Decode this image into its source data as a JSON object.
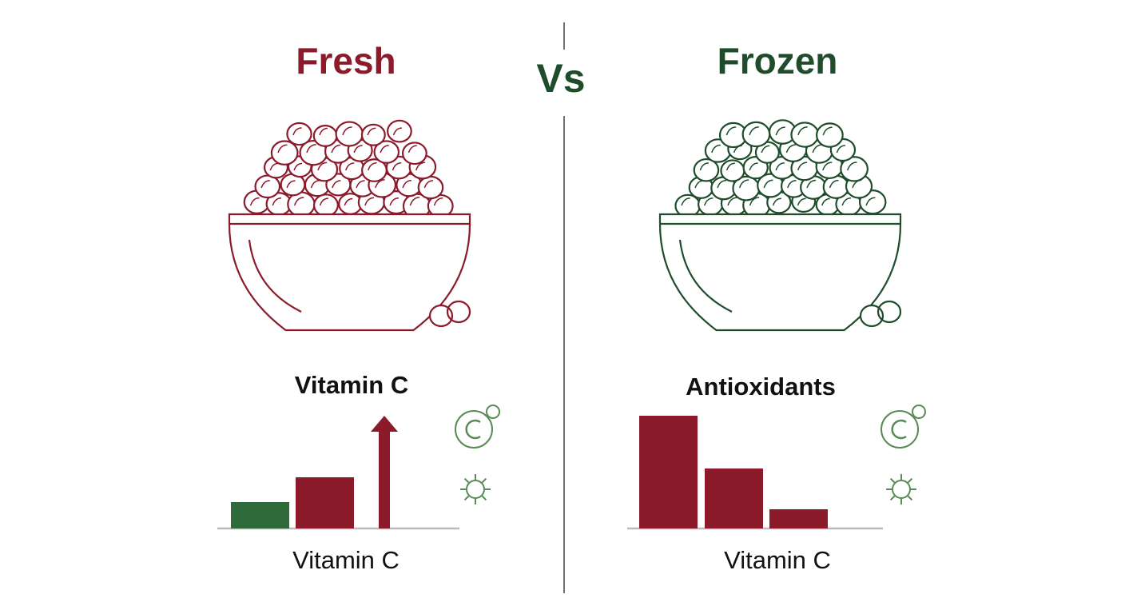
{
  "vs": "Vs",
  "panels": [
    {
      "title": "Fresh",
      "accent": "#8b1a2b",
      "chart_title": "Vitamin C",
      "caption": "Vitamin C",
      "bars": [
        {
          "color": "#2f6b3a",
          "value": 33
        },
        {
          "color": "#8b1a2b",
          "value": 64
        }
      ],
      "arrow": {
        "color": "#8b1a2b",
        "value": 141
      }
    },
    {
      "title": "Frozen",
      "accent": "#1f4d2b",
      "chart_title": "Antioxidants",
      "caption": "Vitamin C",
      "bars": [
        {
          "color": "#8b1a2b",
          "value": 141
        },
        {
          "color": "#8b1a2b",
          "value": 75
        },
        {
          "color": "#8b1a2b",
          "value": 24
        }
      ]
    }
  ]
}
